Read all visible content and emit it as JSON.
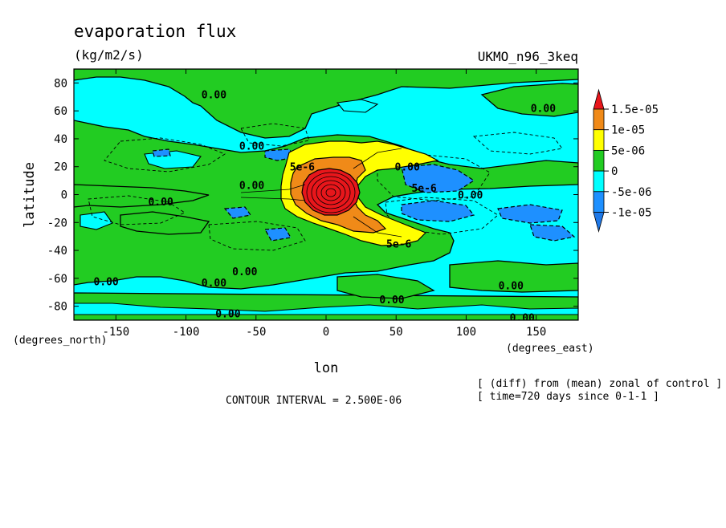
{
  "header": {
    "title": "evaporation flux",
    "units": "(kg/m2/s)",
    "model": "UKMO_n96_3keq"
  },
  "chart_data": {
    "type": "heatmap",
    "title": "evaporation flux",
    "subtitle": "(kg/m2/s)",
    "xlabel": "lon",
    "ylabel": "latitude",
    "x_units": "(degrees_east)",
    "y_units": "(degrees_north)",
    "xlim": [
      -180,
      180
    ],
    "ylim": [
      -90,
      90
    ],
    "x_ticks": [
      -150,
      -100,
      -50,
      0,
      50,
      100,
      150
    ],
    "y_ticks": [
      -80,
      -60,
      -40,
      -20,
      0,
      20,
      40,
      60,
      80
    ],
    "colorbar": {
      "labels": [
        "1.5e-05",
        "1e-05",
        "5e-06",
        "0",
        "-5e-06",
        "-1e-05"
      ],
      "levels": [
        1.5e-05,
        1e-05,
        5e-06,
        0,
        -5e-06,
        -1e-05
      ],
      "colors": [
        "#e8161b",
        "#f08a18",
        "#ffff00",
        "#22cc22",
        "#00ffff",
        "#1e90ff",
        "#1e78e8"
      ]
    },
    "contour_labels": [
      {
        "text": "0.00",
        "lon": -80,
        "lat": 72
      },
      {
        "text": "0.00",
        "lon": 155,
        "lat": 62
      },
      {
        "text": "0.00",
        "lon": -53,
        "lat": 35
      },
      {
        "text": "5e-6",
        "lon": -17,
        "lat": 20
      },
      {
        "text": "0.00",
        "lon": 58,
        "lat": 20
      },
      {
        "text": "0.00",
        "lon": -53,
        "lat": 7
      },
      {
        "text": "5e-6",
        "lon": 70,
        "lat": 5
      },
      {
        "text": "0.00",
        "lon": 103,
        "lat": 0
      },
      {
        "text": "0.00",
        "lon": -118,
        "lat": -5
      },
      {
        "text": "5e-6",
        "lon": 52,
        "lat": -35
      },
      {
        "text": "0.00",
        "lon": -58,
        "lat": -55
      },
      {
        "text": "0.00",
        "lon": -157,
        "lat": -62
      },
      {
        "text": "0.00",
        "lon": -80,
        "lat": -63
      },
      {
        "text": "0.00",
        "lon": 132,
        "lat": -65
      },
      {
        "text": "0.00",
        "lon": 47,
        "lat": -75
      },
      {
        "text": "0.00",
        "lon": -70,
        "lat": -85
      },
      {
        "text": "0.00",
        "lon": 140,
        "lat": -88
      }
    ],
    "contour_interval": "CONTOUR INTERVAL = 2.500E-06"
  },
  "footer": {
    "note_line1": "[ (diff) from (mean) zonal of control ]",
    "note_line2": "[ time=720 days since 0-1-1 ]"
  }
}
